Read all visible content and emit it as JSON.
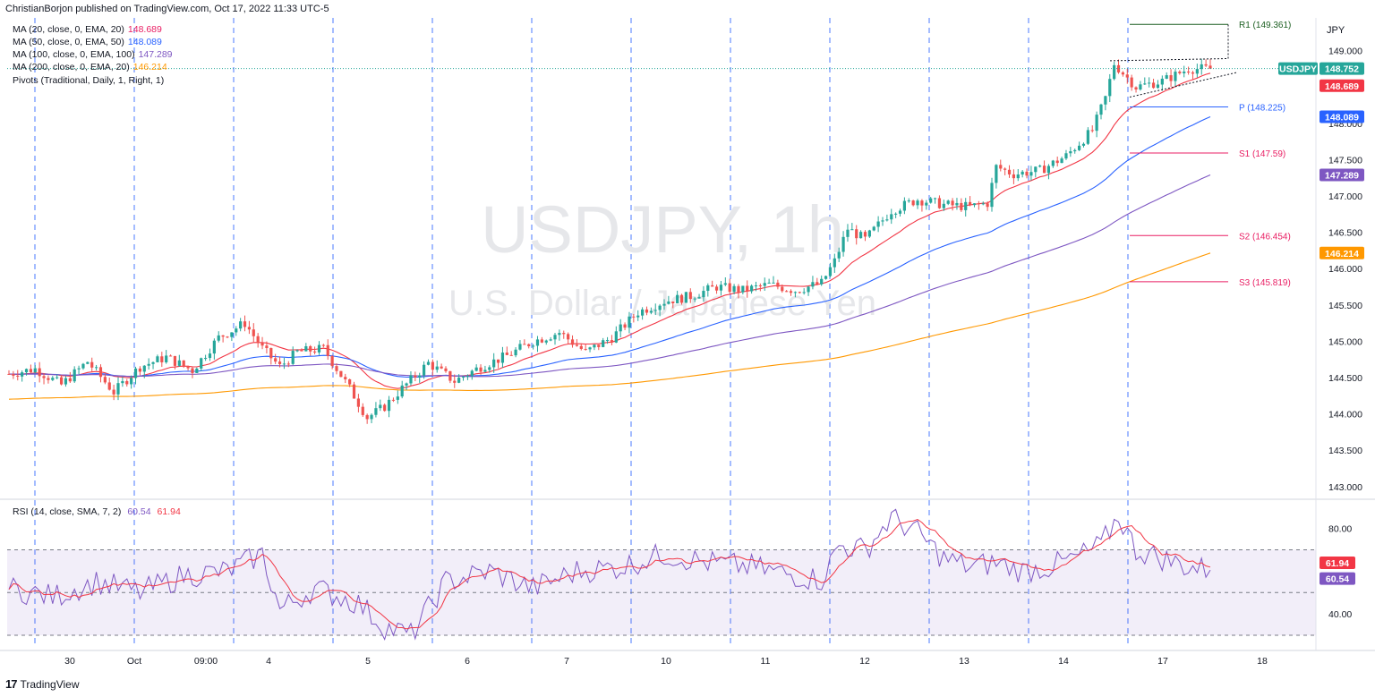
{
  "header": {
    "publisher": "ChristianBorjon published on TradingView.com, Oct 17, 2022 11:33 UTC-5"
  },
  "symbol": {
    "ticker": "USDJPY",
    "watermark_title": "USDJPY, 1h",
    "watermark_subtitle": "U.S. Dollar / Japanese Yen",
    "currency": "JPY",
    "last_price": "148.752"
  },
  "legend": [
    {
      "label": "MA (20, close, 0, EMA, 20)",
      "value": "148.689",
      "color": "#e91e63"
    },
    {
      "label": "MA (50, close, 0, EMA, 50)",
      "value": "148.089",
      "color": "#2962ff"
    },
    {
      "label": "MA (100, close, 0, EMA, 100)",
      "value": "147.289",
      "color": "#7e57c2"
    },
    {
      "label": "MA (200, close, 0, EMA, 20)",
      "value": "146.214",
      "color": "#ff9800"
    },
    {
      "label": "Pivots (Traditional, Daily, 1, Right, 1)",
      "value": "",
      "color": "#131722"
    }
  ],
  "rsi_legend": {
    "label": "RSI (14, close, SMA, 7, 2)",
    "rsi_value": "60.54",
    "sma_value": "61.94"
  },
  "footer": {
    "brand": "TradingView"
  },
  "chart_data": {
    "type": "candlestick",
    "title": "USDJPY, 1h",
    "ylim": [
      142.85,
      149.45
    ],
    "y_ticks": [
      "149.000",
      "148.500",
      "148.000",
      "147.500",
      "147.000",
      "146.500",
      "146.000",
      "145.500",
      "145.000",
      "144.500",
      "144.000",
      "143.500",
      "143.000"
    ],
    "x_ticks": [
      "30",
      "Oct",
      "09:00",
      "4",
      "5",
      "6",
      "7",
      "10",
      "11",
      "12",
      "13",
      "14",
      "17",
      "18"
    ],
    "price_path": [
      [
        0,
        144.55
      ],
      [
        6,
        144.62
      ],
      [
        12,
        144.4
      ],
      [
        18,
        144.72
      ],
      [
        24,
        144.3
      ],
      [
        30,
        144.65
      ],
      [
        36,
        144.78
      ],
      [
        42,
        144.6
      ],
      [
        48,
        145.05
      ],
      [
        54,
        145.25
      ],
      [
        58,
        144.9
      ],
      [
        62,
        144.65
      ],
      [
        66,
        144.85
      ],
      [
        72,
        144.9
      ],
      [
        78,
        144.35
      ],
      [
        82,
        143.95
      ],
      [
        86,
        144.1
      ],
      [
        90,
        144.35
      ],
      [
        96,
        144.7
      ],
      [
        102,
        144.45
      ],
      [
        108,
        144.65
      ],
      [
        114,
        144.8
      ],
      [
        120,
        145.0
      ],
      [
        126,
        145.12
      ],
      [
        132,
        144.85
      ],
      [
        138,
        145.05
      ],
      [
        144,
        145.4
      ],
      [
        150,
        145.55
      ],
      [
        156,
        145.62
      ],
      [
        162,
        145.75
      ],
      [
        168,
        145.7
      ],
      [
        174,
        145.78
      ],
      [
        180,
        145.7
      ],
      [
        186,
        145.8
      ],
      [
        189,
        146.1
      ],
      [
        192,
        146.55
      ],
      [
        196,
        146.4
      ],
      [
        202,
        146.8
      ],
      [
        208,
        146.95
      ],
      [
        214,
        146.88
      ],
      [
        220,
        146.85
      ],
      [
        224,
        146.9
      ],
      [
        226,
        147.4
      ],
      [
        230,
        147.3
      ],
      [
        236,
        147.35
      ],
      [
        242,
        147.55
      ],
      [
        248,
        147.9
      ],
      [
        251,
        148.35
      ],
      [
        253,
        148.82
      ],
      [
        258,
        148.5
      ],
      [
        264,
        148.58
      ],
      [
        270,
        148.75
      ],
      [
        275,
        148.75
      ]
    ],
    "moving_averages": [
      {
        "name": "MA 20 EMA",
        "last": 148.689,
        "color": "#f23645"
      },
      {
        "name": "MA 50 EMA",
        "last": 148.089,
        "color": "#2962ff"
      },
      {
        "name": "MA 100 EMA",
        "last": 147.289,
        "color": "#7e57c2"
      },
      {
        "name": "MA 200 EMA",
        "last": 146.214,
        "color": "#ff9800"
      }
    ],
    "pivots": [
      {
        "label": "R1 (149.361)",
        "value": 149.361,
        "color": "#1b5e20"
      },
      {
        "label": "P (148.225)",
        "value": 148.225,
        "color": "#2962ff"
      },
      {
        "label": "S1 (147.59)",
        "value": 147.59,
        "color": "#e91e63"
      },
      {
        "label": "S2 (146.454)",
        "value": 146.454,
        "color": "#e91e63"
      },
      {
        "label": "S3 (145.819)",
        "value": 145.819,
        "color": "#e91e63"
      }
    ],
    "price_labels": [
      {
        "text": "USDJPY",
        "value": 148.752,
        "bg": "#26a69a"
      },
      {
        "text": "148.752",
        "value": 148.752,
        "bg": "#26a69a"
      },
      {
        "text": "148.689",
        "value": 148.689,
        "bg": "#f23645"
      },
      {
        "text": "148.089",
        "value": 148.089,
        "bg": "#2962ff"
      },
      {
        "text": "147.289",
        "value": 147.289,
        "bg": "#7e57c2"
      },
      {
        "text": "146.214",
        "value": 146.214,
        "bg": "#ff9800"
      }
    ],
    "rsi": {
      "ylim": [
        25,
        92
      ],
      "y_ticks": [
        "80.00",
        "40.00"
      ],
      "band": [
        30,
        70
      ],
      "midline": 50,
      "last_rsi": 60.54,
      "last_sma": 61.94,
      "path": [
        [
          0,
          52
        ],
        [
          10,
          48
        ],
        [
          20,
          55
        ],
        [
          30,
          50
        ],
        [
          40,
          58
        ],
        [
          50,
          60
        ],
        [
          58,
          68
        ],
        [
          62,
          42
        ],
        [
          70,
          52
        ],
        [
          80,
          45
        ],
        [
          86,
          34
        ],
        [
          92,
          30
        ],
        [
          100,
          55
        ],
        [
          110,
          60
        ],
        [
          120,
          52
        ],
        [
          130,
          60
        ],
        [
          140,
          62
        ],
        [
          150,
          68
        ],
        [
          160,
          64
        ],
        [
          170,
          62
        ],
        [
          180,
          58
        ],
        [
          186,
          56
        ],
        [
          190,
          72
        ],
        [
          196,
          70
        ],
        [
          202,
          85
        ],
        [
          208,
          78
        ],
        [
          214,
          66
        ],
        [
          220,
          62
        ],
        [
          226,
          64
        ],
        [
          232,
          60
        ],
        [
          238,
          62
        ],
        [
          244,
          66
        ],
        [
          250,
          72
        ],
        [
          254,
          86
        ],
        [
          258,
          70
        ],
        [
          264,
          66
        ],
        [
          270,
          62
        ],
        [
          275,
          60.54
        ]
      ]
    }
  }
}
